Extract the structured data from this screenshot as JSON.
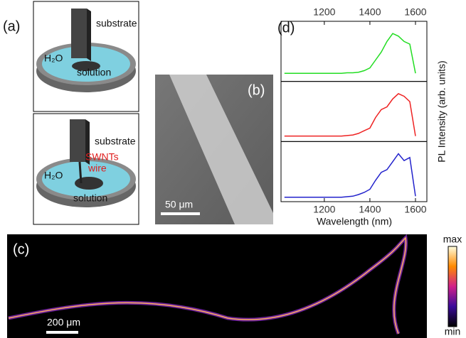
{
  "panels": {
    "a": {
      "label": "(a)",
      "top": {
        "substrate": "substrate",
        "water": "H₂O",
        "solution": "solution"
      },
      "bottom": {
        "substrate": "substrate",
        "wire": [
          "SWNTs",
          "wire"
        ],
        "water": "H₂O",
        "solution": "solution"
      }
    },
    "b": {
      "label": "(b)",
      "scale": "50 μm"
    },
    "c": {
      "label": "(c)",
      "scale": "200 μm",
      "colorbar_max": "max",
      "colorbar_min": "min"
    },
    "d": {
      "label": "(d)"
    }
  },
  "chart_data": {
    "type": "line",
    "xlabel": "Wavelength (nm)",
    "ylabel": "PL Intensity (arb. units)",
    "x": [
      1025,
      1050,
      1075,
      1100,
      1125,
      1150,
      1175,
      1200,
      1225,
      1250,
      1275,
      1300,
      1325,
      1350,
      1375,
      1400,
      1425,
      1450,
      1475,
      1500,
      1525,
      1550,
      1575,
      1600
    ],
    "series": [
      {
        "color": "#22dd22",
        "values": [
          0.1,
          0.1,
          0.1,
          0.1,
          0.1,
          0.1,
          0.1,
          0.1,
          0.1,
          0.1,
          0.1,
          0.11,
          0.11,
          0.12,
          0.15,
          0.2,
          0.35,
          0.5,
          0.7,
          0.85,
          0.8,
          0.7,
          0.65,
          0.1
        ]
      },
      {
        "color": "#ee2222",
        "values": [
          0.05,
          0.05,
          0.05,
          0.05,
          0.05,
          0.05,
          0.05,
          0.05,
          0.05,
          0.05,
          0.05,
          0.06,
          0.07,
          0.1,
          0.15,
          0.2,
          0.4,
          0.55,
          0.6,
          0.75,
          0.85,
          0.8,
          0.7,
          0.05
        ]
      },
      {
        "color": "#2222cc",
        "values": [
          0.03,
          0.03,
          0.03,
          0.03,
          0.03,
          0.03,
          0.03,
          0.03,
          0.03,
          0.03,
          0.03,
          0.04,
          0.05,
          0.08,
          0.12,
          0.18,
          0.35,
          0.5,
          0.55,
          0.7,
          0.85,
          0.72,
          0.78,
          0.05
        ]
      }
    ],
    "xlim": [
      1010,
      1650
    ],
    "xticks": [
      1200,
      1400,
      1600
    ],
    "ylim": [
      0,
      1
    ]
  }
}
